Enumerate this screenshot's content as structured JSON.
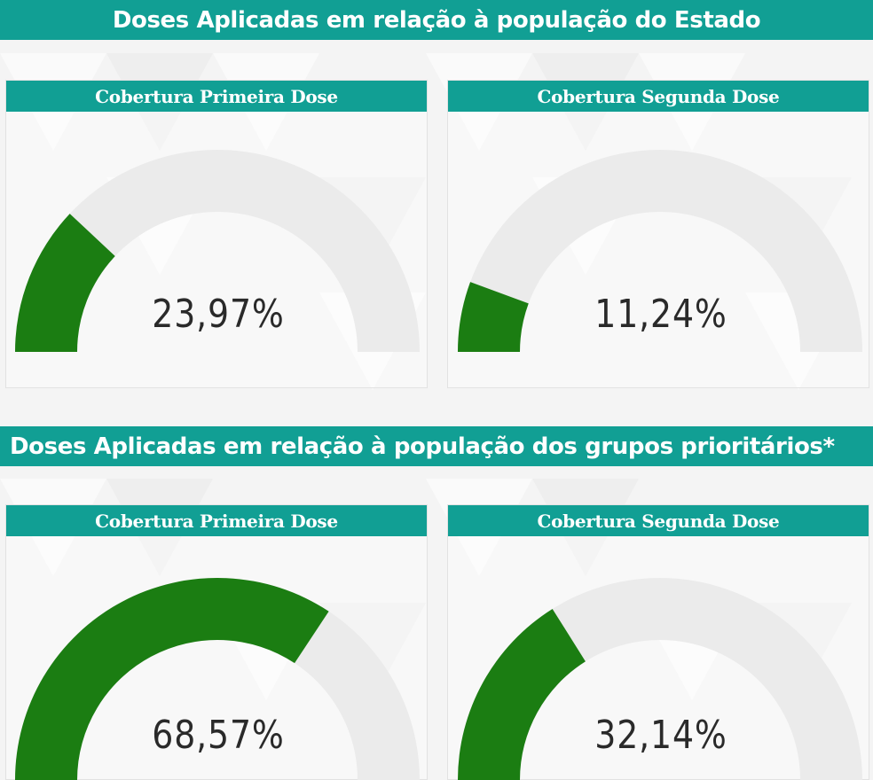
{
  "sections": [
    {
      "title": "Doses Aplicadas em relação à população do Estado",
      "panels": [
        {
          "title": "Cobertura Primeira Dose",
          "value": "23,97%"
        },
        {
          "title": "Cobertura Segunda Dose",
          "value": "11,24%"
        }
      ]
    },
    {
      "title": "Doses Aplicadas em relação à população dos grupos prioritários*",
      "panels": [
        {
          "title": "Cobertura Primeira Dose",
          "value": "68,57%"
        },
        {
          "title": "Cobertura Segunda Dose",
          "value": "32,14%"
        }
      ]
    }
  ],
  "chart_data": [
    {
      "type": "gauge",
      "title": "Cobertura Primeira Dose",
      "value": 23.97,
      "min": 0,
      "max": 100,
      "label": "23,97%"
    },
    {
      "type": "gauge",
      "title": "Cobertura Segunda Dose",
      "value": 11.24,
      "min": 0,
      "max": 100,
      "label": "11,24%"
    },
    {
      "type": "gauge",
      "title": "Cobertura Primeira Dose",
      "value": 68.57,
      "min": 0,
      "max": 100,
      "label": "68,57%"
    },
    {
      "type": "gauge",
      "title": "Cobertura Segunda Dose",
      "value": 32.14,
      "min": 0,
      "max": 100,
      "label": "32,14%"
    }
  ],
  "colors": {
    "header": "#119f94",
    "fill": "#1b7d12",
    "track": "#ebebeb",
    "text": "#2a2a2a"
  }
}
